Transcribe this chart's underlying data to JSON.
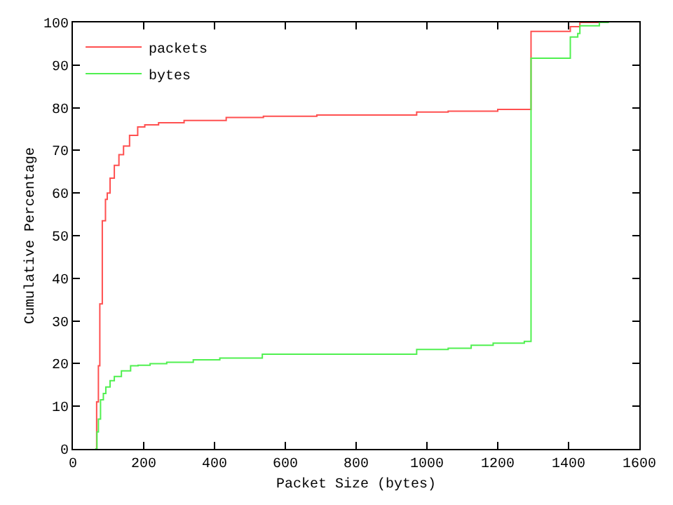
{
  "chart_data": {
    "type": "step",
    "xlabel": "Packet Size (bytes)",
    "ylabel": "Cumulative Percentage",
    "xlim": [
      0,
      1600
    ],
    "ylim": [
      0,
      100
    ],
    "xticks": [
      0,
      200,
      400,
      600,
      800,
      1000,
      1200,
      1400,
      1600
    ],
    "yticks": [
      0,
      10,
      20,
      30,
      40,
      50,
      60,
      70,
      80,
      90,
      100
    ],
    "legend": "top left",
    "marker": "none",
    "line_style": "solid",
    "series": [
      {
        "name": "packets",
        "color": "#ff5050",
        "x": [
          64,
          67,
          72,
          76,
          83,
          92,
          97,
          105,
          117,
          130,
          143,
          160,
          183,
          203,
          242,
          314,
          433,
          538,
          689,
          971,
          1060,
          1200,
          1294,
          1405,
          1432,
          1487
        ],
        "values": [
          0,
          11,
          19.5,
          34,
          53.5,
          58.5,
          60,
          63.5,
          66.5,
          69,
          71,
          73.5,
          75.5,
          76,
          76.5,
          77,
          77.7,
          78,
          78.3,
          79,
          79.2,
          79.6,
          97.9,
          99,
          100,
          100
        ]
      },
      {
        "name": "bytes",
        "color": "#50f050",
        "x": [
          63,
          68,
          72,
          78,
          86,
          93,
          105,
          117,
          137,
          163,
          184,
          218,
          265,
          340,
          415,
          535,
          971,
          1060,
          1125,
          1187,
          1275,
          1294,
          1405,
          1426,
          1432,
          1487,
          1514
        ],
        "values": [
          0,
          4,
          7,
          11.5,
          13,
          14.5,
          16,
          17,
          18.3,
          19.5,
          19.6,
          20,
          20.3,
          20.9,
          21.3,
          22.2,
          23.3,
          23.6,
          24.3,
          24.8,
          25.2,
          91.6,
          96.6,
          97.4,
          99.2,
          100,
          100
        ]
      }
    ]
  }
}
